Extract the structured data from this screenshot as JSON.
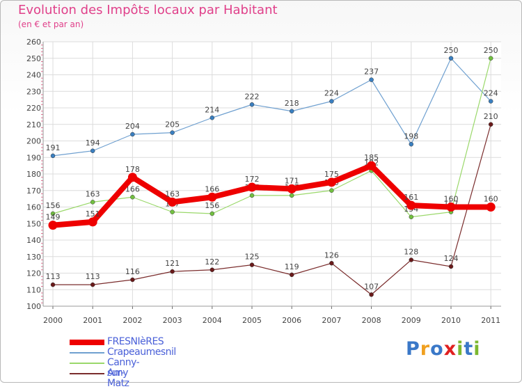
{
  "title": "Evolution des Impôts locaux par Habitant",
  "subtitle": "(en € et par an)",
  "logo": {
    "text": "Proxiti",
    "letters": [
      {
        "ch": "P",
        "color": "#3a78c8"
      },
      {
        "ch": "r",
        "color": "#f0a020"
      },
      {
        "ch": "o",
        "color": "#3a78c8"
      },
      {
        "ch": "x",
        "color": "#e02020"
      },
      {
        "ch": "i",
        "color": "#7cb830"
      },
      {
        "ch": "t",
        "color": "#3a78c8"
      },
      {
        "ch": "i",
        "color": "#7cb830"
      }
    ]
  },
  "chart_data": {
    "type": "line",
    "title": "Evolution des Impôts locaux par Habitant",
    "subtitle": "(en € et par an)",
    "xlabel": "",
    "ylabel": "",
    "x": [
      "2000",
      "2001",
      "2002",
      "2003",
      "2004",
      "2005",
      "2006",
      "2007",
      "2008",
      "2009",
      "2010",
      "2011"
    ],
    "ylim": [
      100,
      260
    ],
    "yticks": [
      100,
      110,
      120,
      130,
      140,
      150,
      160,
      170,
      180,
      190,
      200,
      210,
      220,
      230,
      240,
      250,
      260
    ],
    "grid": true,
    "legend_position": "bottom-left",
    "series": [
      {
        "name": "FRESNIèRES",
        "color": "#ee0000",
        "thick": true,
        "values": [
          149,
          151,
          178,
          163,
          166,
          172,
          171,
          175,
          185,
          161,
          160,
          160
        ],
        "labels": [
          "149",
          "151",
          "178",
          "163",
          "166",
          "172",
          "171",
          "175",
          "185",
          "161",
          "160",
          "160"
        ]
      },
      {
        "name": "Crapeaumesnil",
        "color": "#6fa0d0",
        "point_color": "#3a7fc0",
        "values": [
          191,
          194,
          204,
          205,
          214,
          222,
          218,
          224,
          237,
          198,
          250,
          224
        ],
        "labels": [
          "191",
          "194",
          "204",
          "205",
          "214",
          "222",
          "218",
          "224",
          "237",
          "198",
          "250",
          "224"
        ]
      },
      {
        "name": "Canny-sur-Matz",
        "color": "#9ad86a",
        "point_color": "#72c040",
        "values": [
          156,
          163,
          166,
          157,
          156,
          167,
          167,
          170,
          182,
          154,
          157,
          250
        ],
        "labels": [
          "156",
          "163",
          "166",
          "157",
          "156",
          "167",
          "167",
          "170",
          "182",
          "154",
          "157",
          "250"
        ]
      },
      {
        "name": "Amy",
        "color": "#7a2c2c",
        "point_color": "#6a1a1a",
        "values": [
          113,
          113,
          116,
          121,
          122,
          125,
          119,
          126,
          107,
          128,
          124,
          210
        ],
        "labels": [
          "113",
          "113",
          "116",
          "121",
          "122",
          "125",
          "119",
          "126",
          "107",
          "128",
          "124",
          "210"
        ]
      }
    ]
  }
}
